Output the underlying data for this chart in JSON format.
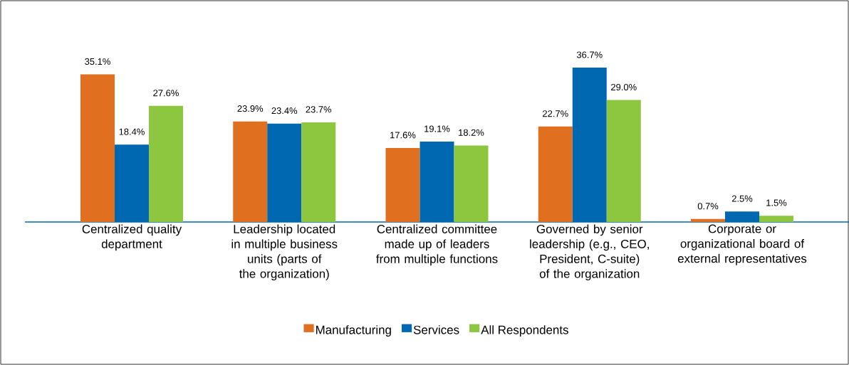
{
  "chart_data": {
    "type": "bar",
    "categories": [
      "Centralized quality department",
      "Leadership located in multiple business units (parts of the organization)",
      "Centralized committee made up of leaders from multiple functions",
      "Governed by senior leadership (e.g., CEO, President, C-suite) of the organization",
      "Corporate or organizational board of external representatives"
    ],
    "series": [
      {
        "name": "Manufacturing",
        "color": "#e07020",
        "values": [
          35.1,
          23.9,
          17.6,
          22.7,
          0.7
        ],
        "value_labels": [
          "35.1%",
          "23.9%",
          "17.6%",
          "22.7%",
          "0.7%"
        ]
      },
      {
        "name": "Services",
        "color": "#0067b1",
        "values": [
          18.4,
          23.4,
          19.1,
          36.7,
          2.5
        ],
        "value_labels": [
          "18.4%",
          "23.4%",
          "19.1%",
          "36.7%",
          "2.5%"
        ]
      },
      {
        "name": "All Respondents",
        "color": "#8dc63f",
        "values": [
          27.6,
          23.7,
          18.2,
          29.0,
          1.5
        ],
        "value_labels": [
          "27.6%",
          "23.7%",
          "18.2%",
          "29.0%",
          "1.5%"
        ]
      }
    ],
    "legend": "bottom"
  }
}
